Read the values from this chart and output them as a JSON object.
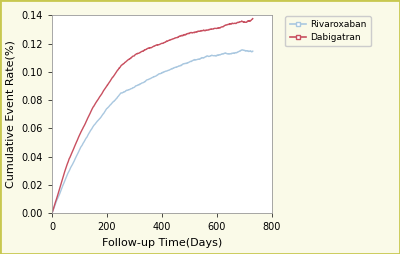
{
  "title": "",
  "xlabel": "Follow-up Time(Days)",
  "ylabel": "Cumulative Event Rate(%)",
  "xlim": [
    0,
    800
  ],
  "ylim": [
    0.0,
    0.14
  ],
  "yticks": [
    0.0,
    0.02,
    0.04,
    0.06,
    0.08,
    0.1,
    0.12,
    0.14
  ],
  "xticks": [
    0,
    200,
    400,
    600,
    800
  ],
  "rivaroxaban_color": "#aac8e0",
  "dabigatran_color": "#c85060",
  "background_outer": "#fafae8",
  "background_inner": "#ffffff",
  "border_color": "#c8c850",
  "legend_labels": [
    "Rivaroxaban",
    "Dabigatran"
  ],
  "linewidth": 1.0,
  "font_size_axis_label": 8,
  "font_size_tick": 7,
  "rivaroxaban_points": [
    [
      0,
      0
    ],
    [
      20,
      0.01
    ],
    [
      50,
      0.025
    ],
    [
      100,
      0.045
    ],
    [
      150,
      0.062
    ],
    [
      200,
      0.075
    ],
    [
      250,
      0.085
    ],
    [
      300,
      0.09
    ],
    [
      350,
      0.095
    ],
    [
      400,
      0.1
    ],
    [
      450,
      0.104
    ],
    [
      500,
      0.107
    ],
    [
      550,
      0.11
    ],
    [
      600,
      0.112
    ],
    [
      650,
      0.114
    ],
    [
      700,
      0.116
    ],
    [
      730,
      0.117
    ]
  ],
  "dabigatran_points": [
    [
      0,
      0
    ],
    [
      20,
      0.013
    ],
    [
      50,
      0.032
    ],
    [
      100,
      0.055
    ],
    [
      150,
      0.075
    ],
    [
      200,
      0.09
    ],
    [
      250,
      0.103
    ],
    [
      300,
      0.11
    ],
    [
      350,
      0.115
    ],
    [
      400,
      0.118
    ],
    [
      450,
      0.121
    ],
    [
      500,
      0.124
    ],
    [
      550,
      0.127
    ],
    [
      600,
      0.129
    ],
    [
      650,
      0.131
    ],
    [
      700,
      0.133
    ],
    [
      730,
      0.135
    ]
  ]
}
